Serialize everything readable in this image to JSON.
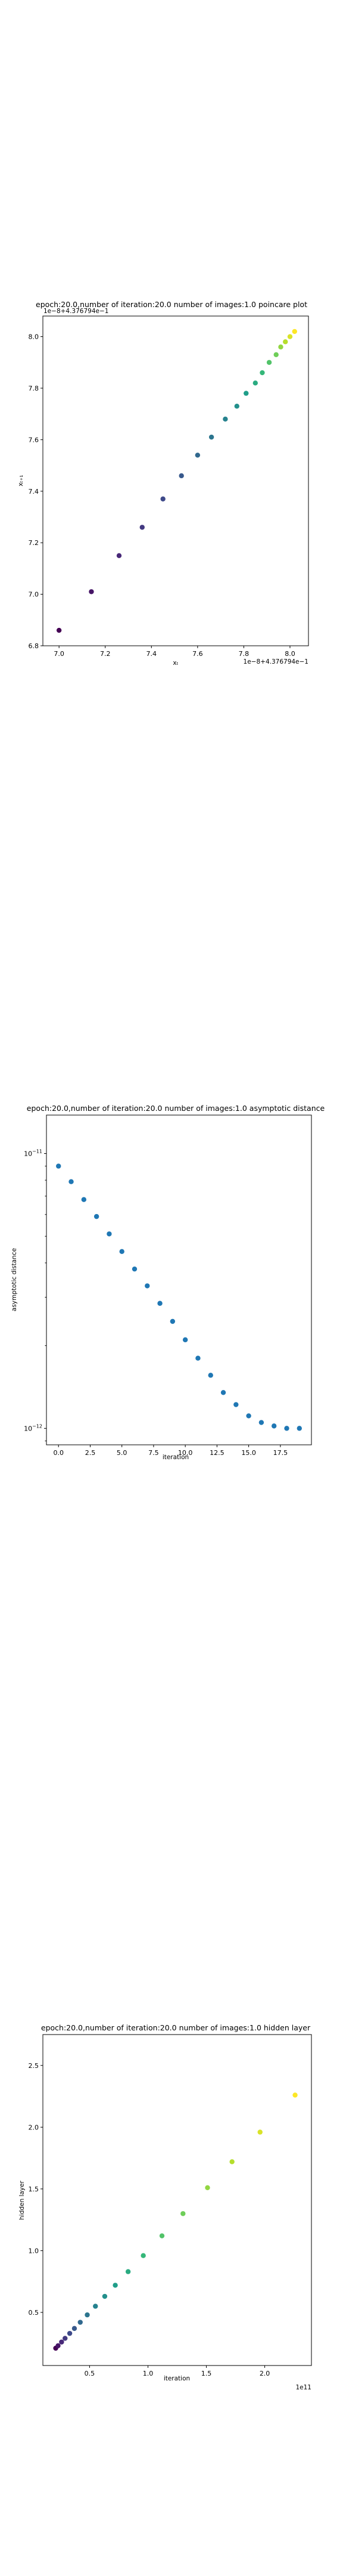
{
  "chart_data": [
    {
      "type": "scatter",
      "title": "epoch:20.0,number of iteration:20.0 number of images:1.0 poincare plot",
      "xlabel": "xₜ",
      "ylabel": "xₜ₊₁",
      "corner_offset": "1e−8+4.376794e−1",
      "x_offset_label": "1e−8+4.376794e−1",
      "xlim": [
        6.93,
        8.08
      ],
      "ylim": [
        6.8,
        8.08
      ],
      "x_ticks": [
        "7.0",
        "7.2",
        "7.4",
        "7.6",
        "7.8",
        "8.0"
      ],
      "x_tick_values": [
        7.0,
        7.2,
        7.4,
        7.6,
        7.8,
        8.0
      ],
      "y_ticks": [
        "6.8",
        "7.0",
        "7.2",
        "7.4",
        "7.6",
        "7.8",
        "8.0"
      ],
      "y_tick_values": [
        6.8,
        7.0,
        7.2,
        7.4,
        7.6,
        7.8,
        8.0
      ],
      "colormap": "viridis",
      "x": [
        7.0,
        7.14,
        7.26,
        7.36,
        7.45,
        7.53,
        7.6,
        7.66,
        7.72,
        7.77,
        7.81,
        7.85,
        7.88,
        7.91,
        7.94,
        7.96,
        7.98,
        8.0,
        8.02
      ],
      "y": [
        6.86,
        7.01,
        7.15,
        7.26,
        7.37,
        7.46,
        7.54,
        7.61,
        7.68,
        7.73,
        7.78,
        7.82,
        7.86,
        7.9,
        7.93,
        7.96,
        7.98,
        8.0,
        8.02
      ]
    },
    {
      "type": "scatter",
      "title": "epoch:20.0,number of iteration:20.0  number of images:1.0 asymptotic distance",
      "xlabel": "iteration",
      "ylabel": "asymptotic distance",
      "yscale": "log",
      "xlim": [
        -0.95,
        19.95
      ],
      "ylim_log10": [
        -12.06,
        -10.86
      ],
      "x_ticks": [
        "0.0",
        "2.5",
        "5.0",
        "7.5",
        "10.0",
        "12.5",
        "15.0",
        "17.5"
      ],
      "x_tick_values": [
        0,
        2.5,
        5,
        7.5,
        10,
        12.5,
        15,
        17.5
      ],
      "y_ticks": [
        {
          "base": "10",
          "exp": "−11",
          "log10": -11
        },
        {
          "base": "10",
          "exp": "−12",
          "log10": -12
        }
      ],
      "color": "#1f77b4",
      "x": [
        0,
        1,
        2,
        3,
        4,
        5,
        6,
        7,
        8,
        9,
        10,
        11,
        12,
        13,
        14,
        15,
        16,
        17,
        18,
        19
      ],
      "y": [
        9e-12,
        7.9e-12,
        6.8e-12,
        5.9e-12,
        5.1e-12,
        4.4e-12,
        3.8e-12,
        3.3e-12,
        2.85e-12,
        2.45e-12,
        2.1e-12,
        1.8e-12,
        1.56e-12,
        1.35e-12,
        1.22e-12,
        1.11e-12,
        1.05e-12,
        1.02e-12,
        1e-12,
        1e-12
      ]
    },
    {
      "type": "scatter",
      "title": "epoch:20.0,number of iteration:20.0  number of images:1.0 hidden layer",
      "xlabel": "iteration",
      "ylabel": "hidden layer",
      "x_offset_label": "1e11",
      "xlim": [
        0.1,
        2.4
      ],
      "ylim": [
        0.07,
        2.75
      ],
      "x_ticks": [
        "0.5",
        "1.0",
        "1.5",
        "2.0"
      ],
      "x_tick_values": [
        0.5,
        1.0,
        1.5,
        2.0
      ],
      "y_ticks": [
        "0.5",
        "1.0",
        "1.5",
        "2.0",
        "2.5"
      ],
      "y_tick_values": [
        0.5,
        1.0,
        1.5,
        2.0,
        2.5
      ],
      "colormap": "viridis",
      "x": [
        0.21,
        0.23,
        0.26,
        0.29,
        0.33,
        0.37,
        0.42,
        0.48,
        0.55,
        0.63,
        0.72,
        0.83,
        0.96,
        1.12,
        1.3,
        1.51,
        1.72,
        1.96,
        2.26
      ],
      "y": [
        0.21,
        0.23,
        0.26,
        0.29,
        0.33,
        0.37,
        0.42,
        0.48,
        0.55,
        0.63,
        0.72,
        0.83,
        0.96,
        1.12,
        1.3,
        1.51,
        1.72,
        1.96,
        2.26
      ]
    }
  ]
}
